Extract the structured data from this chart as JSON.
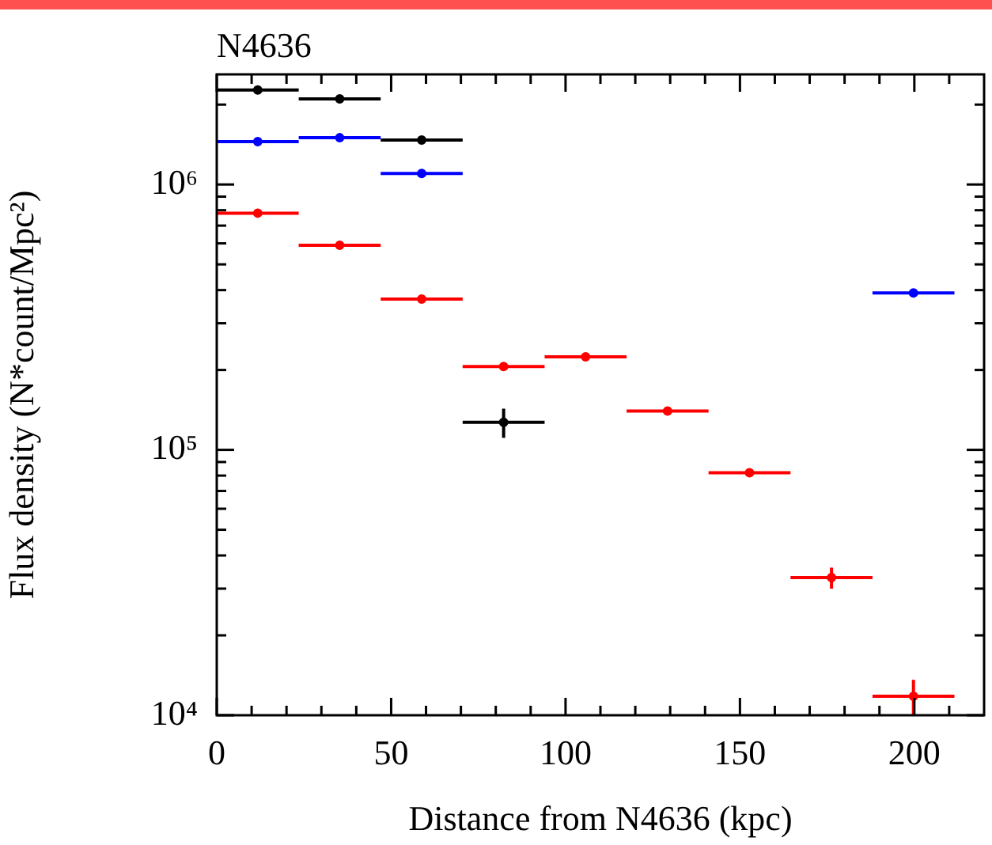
{
  "chart_data": {
    "type": "scatter",
    "title": "N4636",
    "xlabel": "Distance from N4636 (kpc)",
    "ylabel": "Flux density (N*count/Mpc²)",
    "log": "y",
    "marker": "circle",
    "grid": false,
    "legend": false,
    "xlim": [
      0,
      220
    ],
    "xticks": [
      0,
      {
        "value": 10,
        "label": null
      },
      {
        "value": 20,
        "label": null
      },
      {
        "value": 30,
        "label": null
      },
      {
        "value": 40,
        "label": null
      },
      50,
      {
        "value": 60,
        "label": null
      },
      {
        "value": 70,
        "label": null
      },
      {
        "value": 80,
        "label": null
      },
      {
        "value": 90,
        "label": null
      },
      100,
      {
        "value": 110,
        "label": null
      },
      {
        "value": 120,
        "label": null
      },
      {
        "value": 130,
        "label": null
      },
      {
        "value": 140,
        "label": null
      },
      150,
      {
        "value": 160,
        "label": null
      },
      {
        "value": 170,
        "label": null
      },
      {
        "value": 180,
        "label": null
      },
      {
        "value": 190,
        "label": null
      },
      200,
      {
        "value": 210,
        "label": null
      }
    ],
    "ylim": [
      10000,
      2600000
    ],
    "yticks": [
      {
        "value": 10000,
        "label": "10⁴"
      },
      {
        "value": 20000,
        "label": null
      },
      {
        "value": 30000,
        "label": null
      },
      {
        "value": 40000,
        "label": null
      },
      {
        "value": 50000,
        "label": null
      },
      {
        "value": 60000,
        "label": null
      },
      {
        "value": 70000,
        "label": null
      },
      {
        "value": 80000,
        "label": null
      },
      {
        "value": 90000,
        "label": null
      },
      {
        "value": 100000,
        "label": "10⁵"
      },
      {
        "value": 200000,
        "label": null
      },
      {
        "value": 300000,
        "label": null
      },
      {
        "value": 400000,
        "label": null
      },
      {
        "value": 500000,
        "label": null
      },
      {
        "value": 600000,
        "label": null
      },
      {
        "value": 700000,
        "label": null
      },
      {
        "value": 800000,
        "label": null
      },
      {
        "value": 900000,
        "label": null
      },
      {
        "value": 1000000,
        "label": "10⁶"
      },
      {
        "value": 2000000,
        "label": null
      }
    ],
    "series": [
      {
        "color": "#ff0000",
        "x": [
          11.75,
          35.25,
          58.75,
          82.25,
          105.75,
          129.25,
          152.75,
          176.25,
          199.75
        ],
        "values": [
          780000,
          590000,
          370000,
          206000,
          224000,
          140000,
          82000,
          33000,
          11800
        ],
        "xerrors": [
          11.75,
          11.75,
          11.75,
          11.75,
          11.75,
          11.75,
          11.75,
          11.75,
          11.75
        ],
        "errors": [
          null,
          null,
          null,
          null,
          null,
          null,
          null,
          3000,
          1800
        ]
      },
      {
        "color": "#000000",
        "x": [
          11.75,
          35.25,
          58.75,
          82.25
        ],
        "values": [
          2270000,
          2100000,
          1470000,
          127000
        ],
        "xerrors": [
          11.75,
          11.75,
          11.75,
          11.75
        ],
        "errors": [
          null,
          null,
          null,
          16000
        ]
      },
      {
        "color": "#0000ff",
        "x": [
          11.75,
          35.25,
          58.75,
          199.75
        ],
        "values": [
          1450000,
          1500000,
          1100000,
          390000
        ],
        "xerrors": [
          11.75,
          11.75,
          11.75,
          11.75
        ]
      }
    ]
  }
}
